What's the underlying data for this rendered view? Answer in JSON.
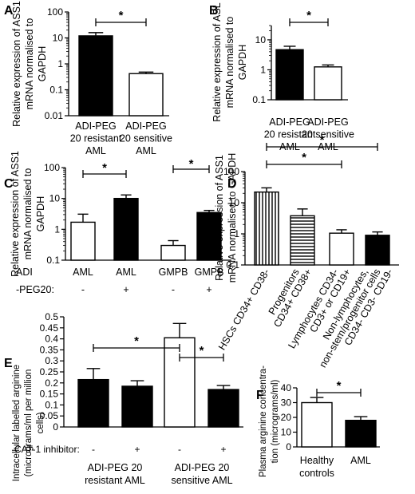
{
  "chart_data": [
    {
      "panel": "A",
      "type": "bar",
      "scale": "log",
      "ylabel": [
        "Relative expression of ASS1",
        "mRNA normalised to",
        "GAPDH"
      ],
      "yticks": [
        "0.01",
        "0.1",
        "1",
        "10",
        "100"
      ],
      "ylim": [
        0.01,
        100
      ],
      "categories": [
        [
          "ADI-PEG",
          "20 resistant",
          "AML"
        ],
        [
          "ADI-PEG",
          "20 sensitive",
          "AML"
        ]
      ],
      "values": [
        12,
        0.42
      ],
      "errors": [
        4,
        0.06
      ],
      "fills": [
        "#000000",
        "#ffffff"
      ],
      "significance": [
        {
          "from": 0,
          "to": 1,
          "label": "*"
        }
      ]
    },
    {
      "panel": "B",
      "type": "bar",
      "scale": "log",
      "ylabel": [
        "Relative expression of ASL",
        "mRNA normalised to",
        "GAPDH"
      ],
      "yticks": [
        "0.1",
        "1",
        "10"
      ],
      "ylim": [
        0.1,
        30
      ],
      "categories": [
        [
          "ADI-PEG",
          "20 resistant",
          "AML"
        ],
        [
          "ADI-PEG",
          "20 sensitive",
          "AML"
        ]
      ],
      "values": [
        4.7,
        1.25
      ],
      "errors": [
        1.4,
        0.2
      ],
      "fills": [
        "#000000",
        "#ffffff"
      ],
      "significance": [
        {
          "from": 0,
          "to": 1,
          "label": "*"
        }
      ]
    },
    {
      "panel": "C",
      "type": "bar",
      "scale": "log",
      "ylabel": [
        "Relative expression of ASS1",
        "mRNA normalised to",
        "GAPDH"
      ],
      "yticks": [
        "0.1",
        "1",
        "10",
        "100"
      ],
      "ylim": [
        0.1,
        100
      ],
      "categories": [
        "AML",
        "AML",
        "GMPB",
        "GMPB"
      ],
      "conditions": [
        "-",
        "+",
        "-",
        "+"
      ],
      "row_label": [
        "ADI",
        "-PEG20:"
      ],
      "values": [
        1.7,
        10,
        0.3,
        3.5
      ],
      "errors": [
        1.4,
        3,
        0.13,
        0.6
      ],
      "fills": [
        "#ffffff",
        "#000000",
        "#ffffff",
        "#000000"
      ],
      "significance": [
        {
          "from": 0,
          "to": 1,
          "label": "*"
        },
        {
          "from": 2,
          "to": 3,
          "label": "*"
        }
      ]
    },
    {
      "panel": "D",
      "type": "bar",
      "scale": "log",
      "ylabel": [
        "Relative expression of ASS1",
        "mRNA normalised to GAPDH"
      ],
      "yticks": [
        "0.1",
        "1",
        "10",
        "100"
      ],
      "ylim": [
        0.1,
        100
      ],
      "categories": [
        [
          "HSCs CD34+ CD38-"
        ],
        [
          "Progenitors",
          "CD34+ CD38+"
        ],
        [
          "Lymphocytes CD34-",
          "CD3+ or CD19+"
        ],
        [
          "Non-lymphocytes,",
          "non-stem/progenitor cells",
          "CD34- CD3- CD19-"
        ]
      ],
      "values": [
        22,
        3.8,
        1.05,
        0.9
      ],
      "errors": [
        8,
        2.5,
        0.3,
        0.25
      ],
      "fills": [
        "vertical-stripes",
        "horizontal-stripes",
        "#ffffff",
        "#000000"
      ],
      "significance": [
        {
          "from": 0,
          "to": 3,
          "label": "*"
        },
        {
          "from": 0,
          "to": 2,
          "label": "*"
        }
      ]
    },
    {
      "panel": "E",
      "type": "bar",
      "scale": "linear",
      "ylabel": [
        "Intracellular labelled arginine",
        "(micrograms/ml per million",
        "cells)"
      ],
      "yticks": [
        "0",
        "0.05",
        "0.1",
        "0.15",
        "0.2",
        "0.25",
        "0.3",
        "0.35",
        "0.4",
        "0.45",
        "0.5"
      ],
      "ylim": [
        0,
        0.5
      ],
      "row_label": "CAT-1 inhibitor:",
      "conditions": [
        "-",
        "+",
        "-",
        "+"
      ],
      "groups": [
        [
          "ADI-PEG 20",
          "resistant AML"
        ],
        [
          "ADI-PEG 20",
          "sensitive AML"
        ]
      ],
      "values": [
        0.215,
        0.185,
        0.405,
        0.17
      ],
      "errors": [
        0.05,
        0.025,
        0.065,
        0.018
      ],
      "fills": [
        "#000000",
        "#000000",
        "#ffffff",
        "#000000"
      ],
      "significance": [
        {
          "from": 0,
          "to": 2,
          "label": "*"
        },
        {
          "from": 2,
          "to": 3,
          "label": "*"
        }
      ]
    },
    {
      "panel": "F",
      "type": "bar",
      "scale": "linear",
      "ylabel": [
        "Plasma arginine concentra-",
        "tion (micrograms/ml)"
      ],
      "yticks": [
        "0",
        "10",
        "20",
        "30",
        "40"
      ],
      "ylim": [
        0,
        40
      ],
      "categories": [
        [
          "Healthy",
          "controls"
        ],
        [
          "AML"
        ]
      ],
      "values": [
        30,
        18
      ],
      "errors": [
        3.5,
        2.5
      ],
      "fills": [
        "#ffffff",
        "#000000"
      ],
      "significance": [
        {
          "from": 0,
          "to": 1,
          "label": "*"
        }
      ]
    }
  ]
}
